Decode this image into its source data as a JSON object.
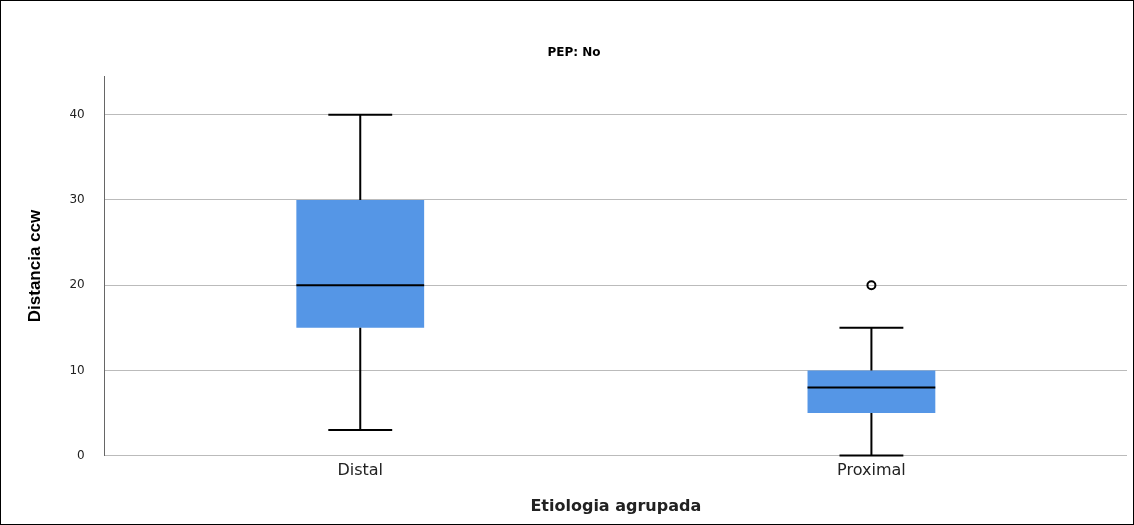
{
  "chart_data": {
    "type": "box",
    "title": "PEP: No",
    "xlabel": "Etiologia agrupada",
    "ylabel": "Distancia ccw",
    "categories": [
      "Distal",
      "Proximal"
    ],
    "color": "#5596e6",
    "boxes": [
      {
        "low": 3,
        "q1": 15,
        "median": 20,
        "q3": 30,
        "high": 40
      },
      {
        "low": 0,
        "q1": 5,
        "median": 8,
        "q3": 10,
        "high": 15,
        "outliers": [
          20
        ]
      }
    ],
    "ylim": [
      0,
      44.5
    ],
    "yticks": [
      0,
      10,
      20,
      30,
      40
    ],
    "grid": "y",
    "legend": false
  }
}
